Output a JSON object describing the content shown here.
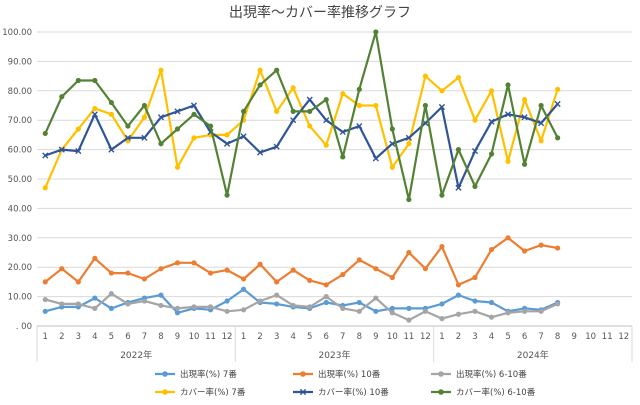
{
  "chart_data": {
    "type": "line",
    "title": "出現率～カバー率推移グラフ",
    "ylim": [
      0,
      100
    ],
    "ytick_step": 10,
    "y_tick_labels": [
      ". 00",
      "10.00",
      "20.00",
      "30.00",
      "40.00",
      "50.00",
      "60.00",
      "70.00",
      "80.00",
      "90.00",
      "100.00"
    ],
    "month_labels": [
      "1",
      "2",
      "3",
      "4",
      "5",
      "6",
      "7",
      "8",
      "9",
      "10",
      "11",
      "12"
    ],
    "years": [
      "2022年",
      "2023年",
      "2024年"
    ],
    "grid": true,
    "legend_position": "bottom",
    "series": [
      {
        "name": "出現率(%) 7番",
        "color": "#5B9BD5",
        "marker": "circle",
        "values": [
          5,
          6.5,
          6.5,
          9.5,
          6,
          8,
          9.5,
          10.5,
          4.5,
          6,
          5.5,
          8.5,
          12.5,
          8,
          7.5,
          6.5,
          6,
          8,
          7,
          8,
          5,
          6,
          6,
          6,
          7.5,
          10.5,
          8.5,
          8,
          5,
          6,
          5.5,
          8
        ]
      },
      {
        "name": "出現率(%) 10番",
        "color": "#ED7D31",
        "marker": "circle",
        "values": [
          15,
          19.5,
          15,
          23,
          18,
          18,
          16,
          19.5,
          21.5,
          21.5,
          18,
          19,
          16,
          21,
          15,
          19,
          15.5,
          14,
          17.5,
          22.5,
          19.5,
          16.5,
          25,
          19.5,
          27,
          14,
          16.5,
          26,
          30,
          25.5,
          27.5,
          26.5
        ]
      },
      {
        "name": "出現率(%) 6-10番",
        "color": "#A5A5A5",
        "marker": "circle",
        "values": [
          9,
          7.5,
          7.5,
          6,
          11,
          7.5,
          8.5,
          7,
          6,
          6.5,
          6.5,
          5,
          5.5,
          8.5,
          10.5,
          7,
          6.5,
          10,
          6,
          5,
          9.5,
          4.5,
          2,
          5,
          2.5,
          4,
          5,
          3,
          4.5,
          5,
          5,
          7.5
        ]
      },
      {
        "name": "カバー率(%) 7番",
        "color": "#FFC000",
        "marker": "circle",
        "values": [
          47,
          60,
          67,
          74,
          72,
          63,
          71,
          87,
          54,
          64,
          65,
          65,
          70,
          87,
          73,
          81,
          68,
          61.5,
          79,
          75,
          75,
          54,
          62,
          85,
          80,
          84.5,
          70,
          80,
          56,
          77,
          63,
          80.5
        ]
      },
      {
        "name": "カバー率(%) 10番",
        "color": "#2F5597",
        "marker": "x",
        "values": [
          58,
          60,
          59.5,
          72,
          60,
          64,
          64,
          71,
          73,
          75,
          66,
          62,
          64.5,
          59,
          61,
          70,
          77,
          70,
          66,
          68,
          57,
          62,
          64,
          69,
          74.5,
          47,
          59.5,
          69.5,
          72,
          71,
          69,
          75.5
        ]
      },
      {
        "name": "カバー率(%) 6-10番",
        "color": "#548235",
        "marker": "circle",
        "values": [
          65.5,
          78,
          83.5,
          83.5,
          76,
          68,
          75,
          62,
          67,
          72,
          68,
          44.5,
          73,
          82,
          87,
          73,
          73,
          77,
          57.5,
          80.5,
          100,
          67,
          43,
          75,
          44.5,
          60,
          47.5,
          58.5,
          82,
          55,
          75,
          64
        ]
      }
    ]
  }
}
